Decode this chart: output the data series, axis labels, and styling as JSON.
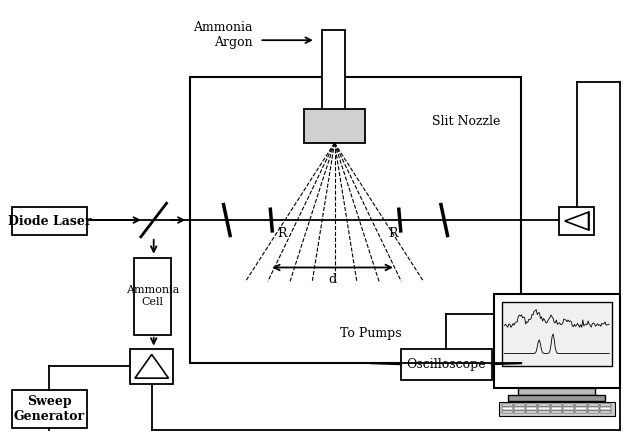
{
  "title": "",
  "bg_color": "#ffffff",
  "fig_width": 6.31,
  "fig_height": 4.48,
  "dpi": 100,
  "labels": {
    "ammonia_argon": "Ammonia\nArgon",
    "slit_nozzle": "Slit Nozzle",
    "diode_laser": "Diode Laser",
    "ammonia_cell": "Ammonia\nCell",
    "to_pumps": "To Pumps",
    "oscilloscope": "Oscilloscope",
    "sweep_generator": "Sweep\nGenerator",
    "R_left": "R",
    "R_right": "R",
    "d": "d"
  }
}
